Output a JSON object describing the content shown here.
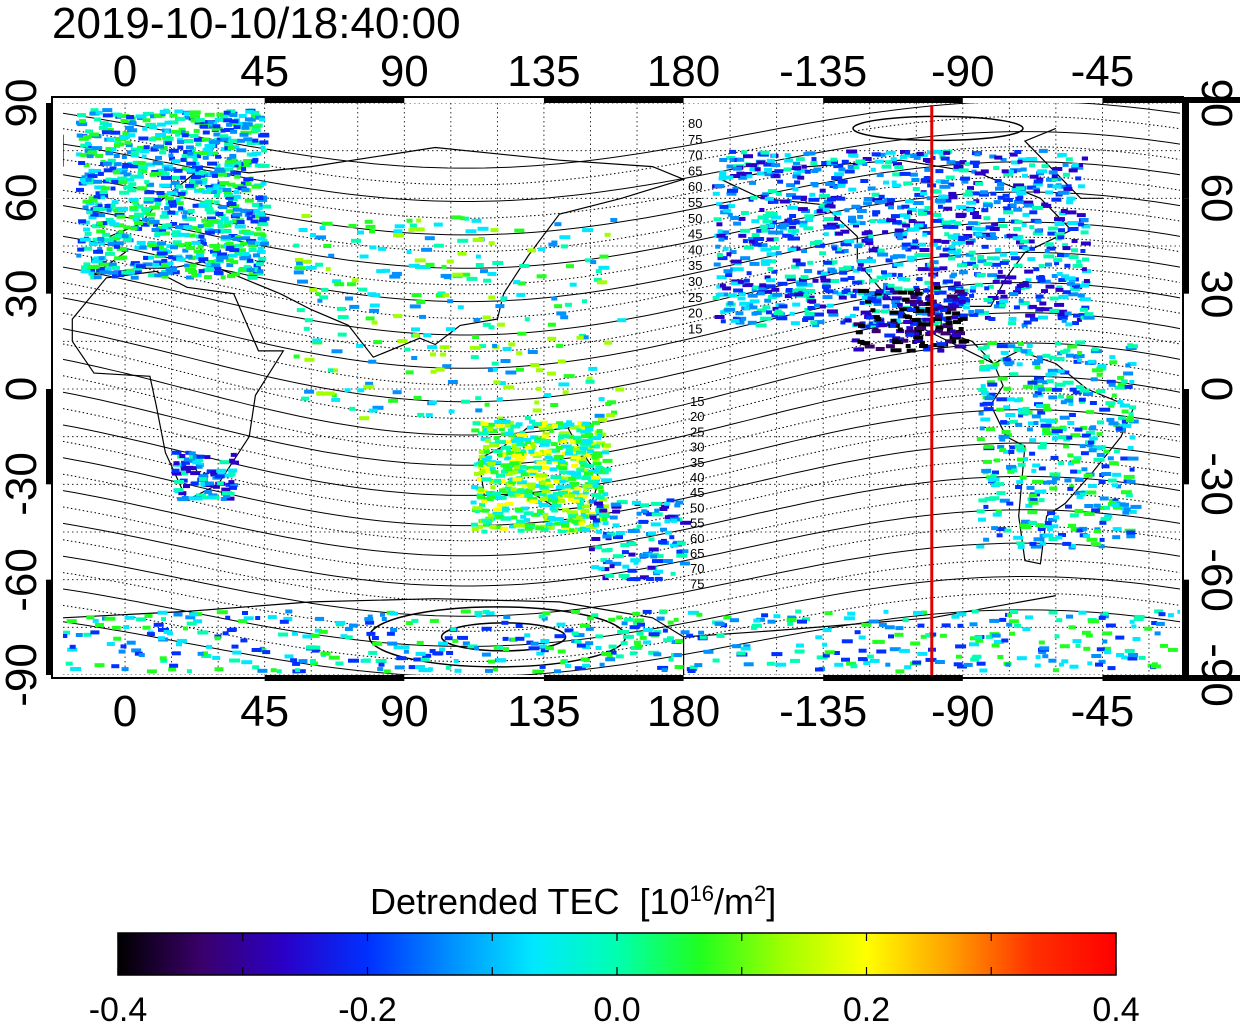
{
  "title": "2019-10-10/18:40:00",
  "map": {
    "x_top_ticks": [
      "0",
      "45",
      "90",
      "135",
      "180",
      "-135",
      "-90",
      "-45"
    ],
    "x_bottom_ticks": [
      "0",
      "45",
      "90",
      "135",
      "180",
      "-135",
      "-90",
      "-45"
    ],
    "y_left_ticks": [
      "90",
      "60",
      "30",
      "0",
      "-30",
      "-60",
      "-90"
    ],
    "y_right_ticks": [
      "90",
      "60",
      "30",
      "0",
      "-30",
      "-60",
      "-90"
    ],
    "lon_range": [
      -20,
      340
    ],
    "lat_range": [
      -90,
      90
    ],
    "marker_longitude": -100,
    "marker_color": "#e00000",
    "contour_labels_north": [
      "80",
      "75",
      "70",
      "65",
      "60",
      "55",
      "50",
      "45",
      "40",
      "35",
      "30",
      "25",
      "20",
      "15"
    ],
    "contour_labels_south": [
      "15",
      "20",
      "25",
      "30",
      "35",
      "40",
      "45",
      "50",
      "55",
      "60",
      "65",
      "70",
      "75"
    ]
  },
  "colorbar": {
    "label": "Detrended TEC",
    "unit_prefix": "[10",
    "unit_exp": "16",
    "unit_mid": "/m",
    "unit_exp2": "2",
    "unit_suffix": "]",
    "range": [
      -0.4,
      0.4
    ],
    "ticks": [
      "-0.4",
      "-0.2",
      "0.0",
      "0.2",
      "0.4"
    ],
    "colors": [
      "#000000",
      "#3a006a",
      "#2a00c8",
      "#0030ff",
      "#0090ff",
      "#00e8ff",
      "#00ffb0",
      "#20ff20",
      "#a0ff00",
      "#ffff00",
      "#ffa000",
      "#ff3000",
      "#ff0000"
    ]
  }
}
